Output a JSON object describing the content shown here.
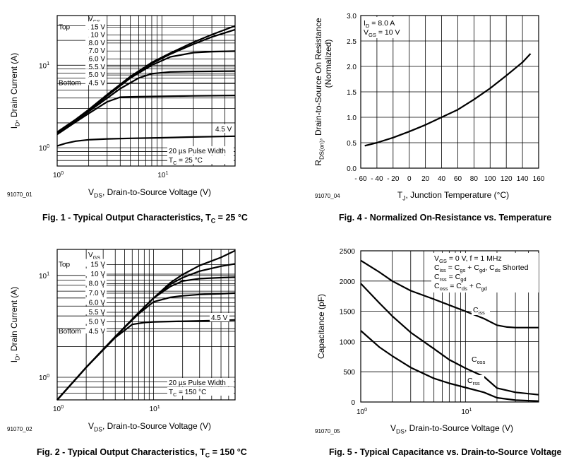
{
  "chart_data": [
    {
      "type": "line",
      "title": "Fig. 1 - Typical Output Characteristics, T",
      "title_sub": "C",
      "title_suffix": " = 25 °C",
      "figure_id": "91070_01",
      "xscale": "log",
      "yscale": "log",
      "xlim": [
        1,
        50
      ],
      "ylim": [
        0.6,
        40
      ],
      "x_ticks": [
        {
          "value": 1,
          "label": "10",
          "exp": "0"
        },
        {
          "value": 10,
          "label": "10",
          "exp": "1"
        }
      ],
      "y_ticks": [
        {
          "value": 1,
          "label": "10",
          "exp": "0"
        },
        {
          "value": 10,
          "label": "10",
          "exp": "1"
        }
      ],
      "xlabel": {
        "pre": "V",
        "sub": "DS",
        "post": ", Drain-to-Source Voltage (V)"
      },
      "ylabel": {
        "pre": "I",
        "sub": "D",
        "post": ", Drain Current (A)"
      },
      "vgs_legend": {
        "header_pre": "V",
        "header_sub": "GS",
        "top_label": "Top",
        "bottom_label": "Bottom",
        "values": [
          "15 V",
          "10 V",
          "8.0 V",
          "7.0 V",
          "6.0 V",
          "5.5 V",
          "5.0 V",
          "4.5 V"
        ]
      },
      "curve_label": "4.5 V",
      "notes": [
        {
          "pre": "20 µs Pulse Width",
          "sub": "",
          "post": ""
        },
        {
          "pre": "T",
          "sub": "C",
          "post": " = 25 °C"
        }
      ],
      "series": [
        {
          "name": "15 V",
          "x": [
            1,
            1.5,
            2,
            3,
            5,
            8,
            12,
            20,
            30,
            50
          ],
          "y": [
            1.55,
            2.2,
            2.9,
            4.4,
            7.3,
            10.8,
            14.0,
            19.0,
            23.5,
            30.0
          ]
        },
        {
          "name": "10 V",
          "x": [
            1,
            1.5,
            2,
            3,
            5,
            8,
            12,
            20,
            30,
            50
          ],
          "y": [
            1.5,
            2.15,
            2.85,
            4.3,
            7.2,
            10.5,
            13.6,
            18.0,
            22.0,
            27.0
          ]
        },
        {
          "name": "8.0 V",
          "x": [
            1,
            1.5,
            2,
            3,
            5,
            8,
            12,
            20,
            30,
            50
          ],
          "y": [
            1.5,
            2.15,
            2.8,
            4.25,
            7.0,
            10.0,
            12.6,
            14.2,
            14.6,
            14.8
          ]
        },
        {
          "name": "6.0 V",
          "x": [
            1,
            1.5,
            2,
            3,
            4,
            6,
            8,
            12,
            20,
            50
          ],
          "y": [
            1.5,
            2.1,
            2.75,
            4.0,
            5.2,
            7.0,
            7.9,
            8.3,
            8.4,
            8.5
          ]
        },
        {
          "name": "5.0 V",
          "x": [
            1,
            1.5,
            2,
            3,
            4,
            6,
            10,
            20,
            50
          ],
          "y": [
            1.45,
            2.05,
            2.6,
            3.6,
            4.1,
            4.15,
            4.2,
            4.25,
            4.3
          ]
        },
        {
          "name": "4.5 V",
          "x": [
            1,
            1.2,
            1.5,
            2,
            3,
            5,
            10,
            20,
            50
          ],
          "y": [
            1.05,
            1.13,
            1.2,
            1.25,
            1.28,
            1.3,
            1.32,
            1.35,
            1.38
          ]
        }
      ]
    },
    {
      "type": "line",
      "title": "Fig. 4 -  Normalized On-Resistance vs. Temperature",
      "figure_id": "91070_04",
      "xscale": "linear",
      "yscale": "linear",
      "xlim": [
        -60,
        160
      ],
      "ylim": [
        0.0,
        3.0
      ],
      "x_ticks": [
        {
          "value": -60,
          "label": "- 60"
        },
        {
          "value": -40,
          "label": "- 40"
        },
        {
          "value": -20,
          "label": "- 20"
        },
        {
          "value": 0,
          "label": "0"
        },
        {
          "value": 20,
          "label": "20"
        },
        {
          "value": 40,
          "label": "40"
        },
        {
          "value": 60,
          "label": "60"
        },
        {
          "value": 80,
          "label": "80"
        },
        {
          "value": 100,
          "label": "100"
        },
        {
          "value": 120,
          "label": "120"
        },
        {
          "value": 140,
          "label": "140"
        },
        {
          "value": 160,
          "label": "160"
        }
      ],
      "y_ticks": [
        {
          "value": 0,
          "label": "0.0"
        },
        {
          "value": 0.5,
          "label": "0.5"
        },
        {
          "value": 1,
          "label": "1.0"
        },
        {
          "value": 1.5,
          "label": "1.5"
        },
        {
          "value": 2,
          "label": "2.0"
        },
        {
          "value": 2.5,
          "label": "2.5"
        },
        {
          "value": 3,
          "label": "3.0"
        }
      ],
      "xlabel": {
        "pre": "T",
        "sub": "J",
        "post": ", Junction Temperature (°C)"
      },
      "ylabel_line1": {
        "pre": "R",
        "sub": "DS(on)",
        "post": ", Drain-to-Source On Resistance"
      },
      "ylabel_line2": "(Normalized)",
      "notes": [
        {
          "pre": "I",
          "sub": "D",
          "post": " = 8.0 A"
        },
        {
          "pre": "V",
          "sub": "GS",
          "post": " = 10 V"
        }
      ],
      "series": [
        {
          "name": "RDS(on)",
          "x": [
            -55,
            -40,
            -20,
            0,
            20,
            40,
            60,
            80,
            100,
            120,
            140,
            150
          ],
          "y": [
            0.44,
            0.5,
            0.6,
            0.72,
            0.85,
            1.0,
            1.15,
            1.35,
            1.57,
            1.82,
            2.08,
            2.25
          ]
        }
      ]
    },
    {
      "type": "line",
      "title": "Fig. 2 - Typical Output Characteristics, T",
      "title_sub": "C",
      "title_suffix": " = 150 °C",
      "figure_id": "91070_02",
      "xscale": "log",
      "yscale": "log",
      "xlim": [
        1,
        70
      ],
      "ylim": [
        0.6,
        18
      ],
      "x_ticks": [
        {
          "value": 1,
          "label": "10",
          "exp": "0"
        },
        {
          "value": 10,
          "label": "10",
          "exp": "1"
        }
      ],
      "y_ticks": [
        {
          "value": 1,
          "label": "10",
          "exp": "0"
        },
        {
          "value": 10,
          "label": "10",
          "exp": "1"
        }
      ],
      "xlabel": {
        "pre": "V",
        "sub": "DS",
        "post": ", Drain-to-Source Voltage (V)"
      },
      "ylabel": {
        "pre": "I",
        "sub": "D",
        "post": ", Drain Current (A)"
      },
      "vgs_legend": {
        "header_pre": "V",
        "header_sub": "GS",
        "top_label": "Top",
        "bottom_label": "Bottom",
        "values": [
          "15 V",
          "10 V",
          "8.0 V",
          "7.0 V",
          "6.0 V",
          "5.5 V",
          "5.0 V",
          "4.5 V"
        ]
      },
      "curve_label": "4.5 V",
      "notes": [
        {
          "pre": "20 µs Pulse Width",
          "sub": "",
          "post": ""
        },
        {
          "pre": "T",
          "sub": "C",
          "post": " = 150 °C"
        }
      ],
      "series": [
        {
          "name": "15 V",
          "x": [
            1,
            2,
            4,
            7,
            10,
            15,
            20,
            30,
            50,
            70
          ],
          "y": [
            0.6,
            1.25,
            2.5,
            4.3,
            6.0,
            8.5,
            10.2,
            12.5,
            15.0,
            17.5
          ]
        },
        {
          "name": "10 V",
          "x": [
            1,
            2,
            4,
            7,
            10,
            15,
            20,
            30,
            50,
            70
          ],
          "y": [
            0.6,
            1.25,
            2.5,
            4.3,
            6.0,
            8.2,
            9.5,
            11.0,
            12.3,
            13.0
          ]
        },
        {
          "name": "8.0 V",
          "x": [
            1,
            2,
            4,
            7,
            10,
            15,
            20,
            30,
            50,
            70
          ],
          "y": [
            0.6,
            1.25,
            2.5,
            4.3,
            6.0,
            7.8,
            8.8,
            9.3,
            9.5,
            9.6
          ]
        },
        {
          "name": "6.0 V",
          "x": [
            1,
            2,
            4,
            7,
            10,
            15,
            20,
            30,
            50,
            70
          ],
          "y": [
            0.6,
            1.25,
            2.5,
            4.2,
            5.5,
            6.1,
            6.3,
            6.5,
            6.6,
            6.7
          ]
        },
        {
          "name": "5.0 V",
          "x": [
            1,
            2,
            4,
            6,
            8,
            10,
            20,
            40,
            70
          ],
          "y": [
            0.6,
            1.25,
            2.45,
            3.3,
            3.45,
            3.5,
            3.55,
            3.6,
            3.65
          ]
        }
      ]
    },
    {
      "type": "line",
      "title": "Fig. 5 - Typical Capacitance vs. Drain-to-Source Voltage",
      "figure_id": "91070_05",
      "xscale": "log",
      "yscale": "linear",
      "xlim": [
        1,
        50
      ],
      "ylim": [
        0,
        2500
      ],
      "x_ticks": [
        {
          "value": 1,
          "label": "10",
          "exp": "0"
        },
        {
          "value": 10,
          "label": "10",
          "exp": "1"
        }
      ],
      "y_ticks": [
        {
          "value": 0,
          "label": "0"
        },
        {
          "value": 500,
          "label": "500"
        },
        {
          "value": 1000,
          "label": "1000"
        },
        {
          "value": 1500,
          "label": "1500"
        },
        {
          "value": 2000,
          "label": "2000"
        },
        {
          "value": 2500,
          "label": "2500"
        }
      ],
      "xlabel": {
        "pre": "V",
        "sub": "DS",
        "post": ", Drain-to-Source Voltage (V)"
      },
      "ylabel": {
        "pre": "Capacitance (pF)",
        "sub": "",
        "post": ""
      },
      "notes": [
        {
          "parts": [
            {
              "t": "V"
            },
            {
              "t": "GS",
              "sub": true
            },
            {
              "t": " = 0 V, f = 1 MHz"
            }
          ]
        },
        {
          "parts": [
            {
              "t": "C"
            },
            {
              "t": "iss",
              "sub": true
            },
            {
              "t": " = C"
            },
            {
              "t": "gs",
              "sub": true
            },
            {
              "t": " + C"
            },
            {
              "t": "gd",
              "sub": true
            },
            {
              "t": ", C"
            },
            {
              "t": "ds",
              "sub": true
            },
            {
              "t": " Shorted"
            }
          ]
        },
        {
          "parts": [
            {
              "t": "C"
            },
            {
              "t": "rss",
              "sub": true
            },
            {
              "t": " = C"
            },
            {
              "t": "gd",
              "sub": true
            }
          ]
        },
        {
          "parts": [
            {
              "t": "C"
            },
            {
              "t": "oss",
              "sub": true
            },
            {
              "t": " = C"
            },
            {
              "t": "ds",
              "sub": true
            },
            {
              "t": " + C"
            },
            {
              "t": "gd",
              "sub": true
            }
          ]
        }
      ],
      "curve_labels": [
        {
          "pre": "C",
          "sub": "iss",
          "series": "Ciss"
        },
        {
          "pre": "C",
          "sub": "oss",
          "series": "Coss"
        },
        {
          "pre": "C",
          "sub": "rss",
          "series": "Crss"
        }
      ],
      "series": [
        {
          "name": "Ciss",
          "x": [
            1,
            1.5,
            2,
            3,
            5,
            10,
            15,
            20,
            25,
            30,
            50
          ],
          "y": [
            2340,
            2150,
            2000,
            1840,
            1700,
            1500,
            1380,
            1270,
            1240,
            1230,
            1230
          ]
        },
        {
          "name": "Coss",
          "x": [
            1,
            1.5,
            2,
            3,
            5,
            7,
            10,
            15,
            20,
            30,
            50
          ],
          "y": [
            1960,
            1640,
            1420,
            1150,
            880,
            700,
            560,
            420,
            230,
            160,
            120
          ]
        },
        {
          "name": "Crss",
          "x": [
            1,
            1.5,
            2,
            3,
            5,
            7,
            10,
            15,
            20,
            30,
            50
          ],
          "y": [
            1180,
            910,
            760,
            570,
            390,
            310,
            240,
            160,
            70,
            30,
            15
          ]
        }
      ]
    }
  ]
}
